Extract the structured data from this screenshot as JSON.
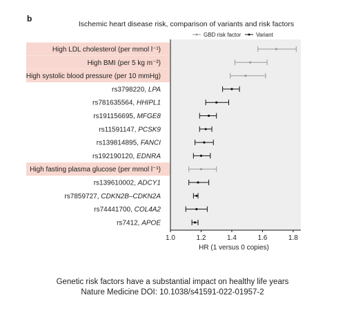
{
  "panel_letter": "b",
  "caption": {
    "line1": "Genetic risk factors have a substantial impact on healthy life years",
    "line2": "Nature Medicine DOI: 10.1038/s41591-022-01957-2"
  },
  "colors": {
    "risk_factor_highlight": "#f7d7cf",
    "plot_background": "#eeeeee",
    "gbd_marker": "#999999",
    "variant_marker": "#111111"
  },
  "chart_data": {
    "type": "forest",
    "title": "Ischemic heart disease risk, comparison of variants and risk factors",
    "xlabel": "HR (1 versus 0 copies)",
    "xlim": [
      1.0,
      1.85
    ],
    "xticks": [
      "1.0",
      "1.2",
      "1.4",
      "1.6",
      "1.8"
    ],
    "legend": {
      "placement": "top-right",
      "entries": [
        {
          "name": "GBD risk factor",
          "series": "gbd"
        },
        {
          "name": "Variant",
          "series": "variant"
        }
      ]
    },
    "rows": [
      {
        "label": "High LDL cholesterol (per mmol l⁻¹)",
        "series": "gbd",
        "hr": 1.69,
        "lo": 1.57,
        "hi": 1.82
      },
      {
        "label": "High BMI (per 5 kg m⁻²)",
        "series": "gbd",
        "hr": 1.52,
        "lo": 1.42,
        "hi": 1.63
      },
      {
        "label": "High systolic blood pressure (per 10 mmHg)",
        "series": "gbd",
        "hr": 1.49,
        "lo": 1.39,
        "hi": 1.62
      },
      {
        "label": "rs3798220,",
        "gene": "LPA",
        "series": "variant",
        "hr": 1.4,
        "lo": 1.34,
        "hi": 1.45
      },
      {
        "label": "rs781635564,",
        "gene": "HHIPL1",
        "series": "variant",
        "hr": 1.3,
        "lo": 1.23,
        "hi": 1.38
      },
      {
        "label": "rs191156695,",
        "gene": "MFGE8",
        "series": "variant",
        "hr": 1.25,
        "lo": 1.19,
        "hi": 1.3
      },
      {
        "label": "rs11591147,",
        "gene": "PCSK9",
        "series": "variant",
        "hr": 1.23,
        "lo": 1.19,
        "hi": 1.27
      },
      {
        "label": "rs139814895,",
        "gene": "FANCI",
        "series": "variant",
        "hr": 1.22,
        "lo": 1.16,
        "hi": 1.28
      },
      {
        "label": "rs192190120,",
        "gene": "EDNRA",
        "series": "variant",
        "hr": 1.2,
        "lo": 1.15,
        "hi": 1.26
      },
      {
        "label": "High fasting plasma glucose (per mmol l⁻¹)",
        "series": "gbd",
        "hr": 1.2,
        "lo": 1.12,
        "hi": 1.3
      },
      {
        "label": "rs139610002,",
        "gene": "ADCY1",
        "series": "variant",
        "hr": 1.18,
        "lo": 1.12,
        "hi": 1.25
      },
      {
        "label": "rs7859727,",
        "gene": "CDKN2B–CDKN2A",
        "series": "variant",
        "hr": 1.17,
        "lo": 1.15,
        "hi": 1.18
      },
      {
        "label": "rs74441700,",
        "gene": "COL4A2",
        "series": "variant",
        "hr": 1.17,
        "lo": 1.1,
        "hi": 1.24
      },
      {
        "label": "rs7412,",
        "gene": "APOE",
        "series": "variant",
        "hr": 1.16,
        "lo": 1.14,
        "hi": 1.18
      }
    ]
  }
}
